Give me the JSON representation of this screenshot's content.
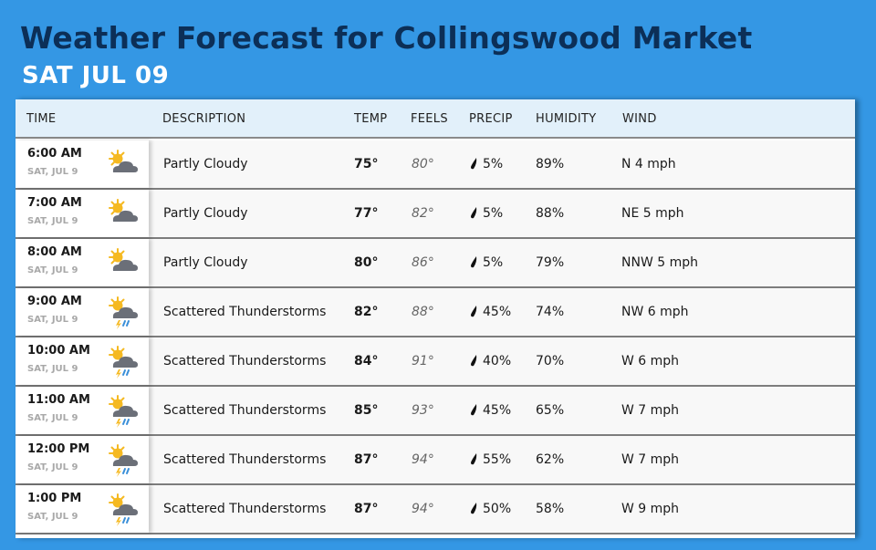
{
  "header": {
    "title": "Weather Forecast for Collingswood Market",
    "subtitle": "SAT JUL 09"
  },
  "table": {
    "columns": {
      "time": "TIME",
      "description": "DESCRIPTION",
      "temp": "TEMP",
      "feels": "FEELS",
      "precip": "PRECIP",
      "humidity": "HUMIDITY",
      "wind": "WIND"
    },
    "rows": [
      {
        "time": "6:00 AM",
        "date": "SAT, JUL 9",
        "icon": "partly-cloudy-icon",
        "description": "Partly Cloudy",
        "temp": "75°",
        "feels": "80°",
        "precip": "5%",
        "humidity": "89%",
        "wind": "N 4 mph"
      },
      {
        "time": "7:00 AM",
        "date": "SAT, JUL 9",
        "icon": "partly-cloudy-icon",
        "description": "Partly Cloudy",
        "temp": "77°",
        "feels": "82°",
        "precip": "5%",
        "humidity": "88%",
        "wind": "NE 5 mph"
      },
      {
        "time": "8:00 AM",
        "date": "SAT, JUL 9",
        "icon": "partly-cloudy-icon",
        "description": "Partly Cloudy",
        "temp": "80°",
        "feels": "86°",
        "precip": "5%",
        "humidity": "79%",
        "wind": "NNW 5 mph"
      },
      {
        "time": "9:00 AM",
        "date": "SAT, JUL 9",
        "icon": "scattered-thunderstorms-icon",
        "description": "Scattered Thunderstorms",
        "temp": "82°",
        "feels": "88°",
        "precip": "45%",
        "humidity": "74%",
        "wind": "NW 6 mph"
      },
      {
        "time": "10:00 AM",
        "date": "SAT, JUL 9",
        "icon": "scattered-thunderstorms-icon",
        "description": "Scattered Thunderstorms",
        "temp": "84°",
        "feels": "91°",
        "precip": "40%",
        "humidity": "70%",
        "wind": "W 6 mph"
      },
      {
        "time": "11:00 AM",
        "date": "SAT, JUL 9",
        "icon": "scattered-thunderstorms-icon",
        "description": "Scattered Thunderstorms",
        "temp": "85°",
        "feels": "93°",
        "precip": "45%",
        "humidity": "65%",
        "wind": "W 7 mph"
      },
      {
        "time": "12:00 PM",
        "date": "SAT, JUL 9",
        "icon": "scattered-thunderstorms-icon",
        "description": "Scattered Thunderstorms",
        "temp": "87°",
        "feels": "94°",
        "precip": "55%",
        "humidity": "62%",
        "wind": "W 7 mph"
      },
      {
        "time": "1:00 PM",
        "date": "SAT, JUL 9",
        "icon": "scattered-thunderstorms-icon",
        "description": "Scattered Thunderstorms",
        "temp": "87°",
        "feels": "94°",
        "precip": "50%",
        "humidity": "58%",
        "wind": "W 9 mph"
      }
    ]
  },
  "colors": {
    "background": "#3497e4",
    "title": "#0c2f57",
    "header_row": "#e2f0fa",
    "sun": "#f5b921",
    "cloud": "#6b6f78",
    "rain": "#3a8fd8"
  }
}
